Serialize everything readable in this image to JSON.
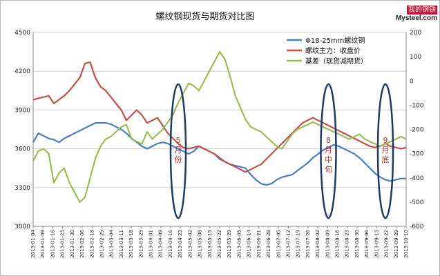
{
  "logo": {
    "top_text": "我的钢铁",
    "bottom_text": "Mysteel.com"
  },
  "chart_data": {
    "type": "line",
    "title": "螺纹钢现货与期货对比图",
    "y_left": {
      "min": 3000,
      "max": 4500,
      "ticks": [
        3000,
        3300,
        3600,
        3900,
        4200,
        4500
      ]
    },
    "y_right": {
      "min": -600,
      "max": 200,
      "ticks": [
        -600,
        -500,
        -400,
        -300,
        -200,
        -100,
        0,
        100,
        200
      ]
    },
    "x_ticks": [
      "2013-01-04",
      "2013-01-09",
      "2013-01-16",
      "2013-01-23",
      "2013-01-30",
      "2013-02-06",
      "2013-02-18",
      "2013-02-25",
      "2013-03-04",
      "2013-03-11",
      "2013-03-18",
      "2013-03-25",
      "2013-04-01",
      "2013-04-09",
      "2013-04-16",
      "2013-04-23",
      "2013-05-02",
      "2013-05-09",
      "2013-05-16",
      "2013-05-23",
      "2013-05-30",
      "2013-06-06",
      "2013-06-17",
      "2013-06-24",
      "2013-07-01",
      "2013-07-08",
      "2013-07-15",
      "2013-07-22",
      "2013-07-29",
      "2013-08-05",
      "2013-08-12",
      "2013-08-19",
      "2013-08-26",
      "2013-09-02",
      "2013-09-09",
      "2013-09-16",
      "2013-09-23",
      "2013-09-30",
      "2013-10-10"
    ],
    "x_tick_labels": [
      "2013-01-04",
      "2013-01-09",
      "2013-01-16",
      "2013-01-23",
      "2013-01-30",
      "2013-02-06",
      "2013-02-18",
      "2013-02-25",
      "2013-03-04",
      "2013-03-11",
      "2013-03-18",
      "2013-03-25",
      "2013-04-01",
      "2013-04-09",
      "2013-04-16",
      "2013-04-23",
      "2013-05-02",
      "2013-05-08",
      "2013-05-15",
      "2013-05-22",
      "2013-05-29",
      "2013-06-05",
      "2013-06-14",
      "2013-06-21",
      "2013-06-28",
      "2013-07-05",
      "2013-07-12",
      "2013-07-19",
      "2013-07-26",
      "2013-08-02",
      "2013-08-09",
      "2013-08-16",
      "2013-08-23",
      "2013-08-30",
      "2013-09-06",
      "2013-09-13",
      "2013-09-22",
      "2013-09-29",
      "2013-10-10"
    ],
    "legend": {
      "placement": "top-right",
      "entries": [
        "Φ18-25mm螺纹钢",
        "螺纹主力：收盘价",
        "基差（现货减期货）"
      ]
    },
    "series": [
      {
        "name": "Φ18-25mm螺纹钢",
        "axis": "left",
        "color": "#4a7ebb",
        "values": [
          3650,
          3720,
          3700,
          3680,
          3670,
          3650,
          3680,
          3700,
          3720,
          3740,
          3760,
          3780,
          3800,
          3800,
          3800,
          3790,
          3770,
          3750,
          3720,
          3680,
          3650,
          3620,
          3600,
          3620,
          3640,
          3650,
          3640,
          3620,
          3600,
          3580,
          3560,
          3580,
          3620,
          3600,
          3580,
          3560,
          3520,
          3500,
          3480,
          3470,
          3460,
          3450,
          3400,
          3360,
          3330,
          3320,
          3330,
          3360,
          3380,
          3390,
          3400,
          3430,
          3460,
          3490,
          3530,
          3560,
          3590,
          3610,
          3630,
          3620,
          3600,
          3580,
          3560,
          3530,
          3490,
          3450,
          3410,
          3380,
          3360,
          3350,
          3360,
          3370,
          3370
        ]
      },
      {
        "name": "螺纹主力：收盘价",
        "axis": "left",
        "color": "#c0504d",
        "values": [
          3980,
          3990,
          4000,
          4010,
          3950,
          3980,
          4010,
          4050,
          4100,
          4150,
          4260,
          4270,
          4150,
          4080,
          4050,
          4000,
          3950,
          3900,
          3820,
          3860,
          3900,
          3860,
          3800,
          3820,
          3840,
          3780,
          3720,
          3680,
          3640,
          3610,
          3600,
          3610,
          3620,
          3600,
          3580,
          3560,
          3530,
          3500,
          3480,
          3460,
          3440,
          3420,
          3440,
          3460,
          3480,
          3520,
          3560,
          3600,
          3640,
          3680,
          3720,
          3760,
          3800,
          3820,
          3840,
          3820,
          3800,
          3780,
          3760,
          3740,
          3720,
          3700,
          3680,
          3660,
          3640,
          3620,
          3610,
          3620,
          3640,
          3620,
          3610,
          3600,
          3610
        ]
      },
      {
        "name": "基差（现货减期货）",
        "axis": "right",
        "color": "#9bbb59",
        "values": [
          -330,
          -290,
          -280,
          -300,
          -420,
          -380,
          -360,
          -420,
          -460,
          -500,
          -480,
          -400,
          -320,
          -270,
          -240,
          -230,
          -210,
          -190,
          -180,
          -240,
          -250,
          -260,
          -210,
          -240,
          -220,
          -200,
          -170,
          -140,
          -90,
          -50,
          -10,
          -20,
          -40,
          0,
          40,
          80,
          120,
          90,
          20,
          -60,
          -110,
          -160,
          -190,
          -200,
          -210,
          -230,
          -250,
          -270,
          -280,
          -250,
          -220,
          -200,
          -190,
          -180,
          -170,
          -180,
          -190,
          -200,
          -210,
          -220,
          -230,
          -240,
          -230,
          -220,
          -240,
          -250,
          -260,
          -270,
          -260,
          -250,
          -240,
          -230,
          -240
        ]
      }
    ],
    "annotations": [
      {
        "text": "5月份",
        "index": 28
      },
      {
        "text": "8月中旬",
        "index": 57
      },
      {
        "text": "9月底",
        "index": 68
      }
    ]
  }
}
